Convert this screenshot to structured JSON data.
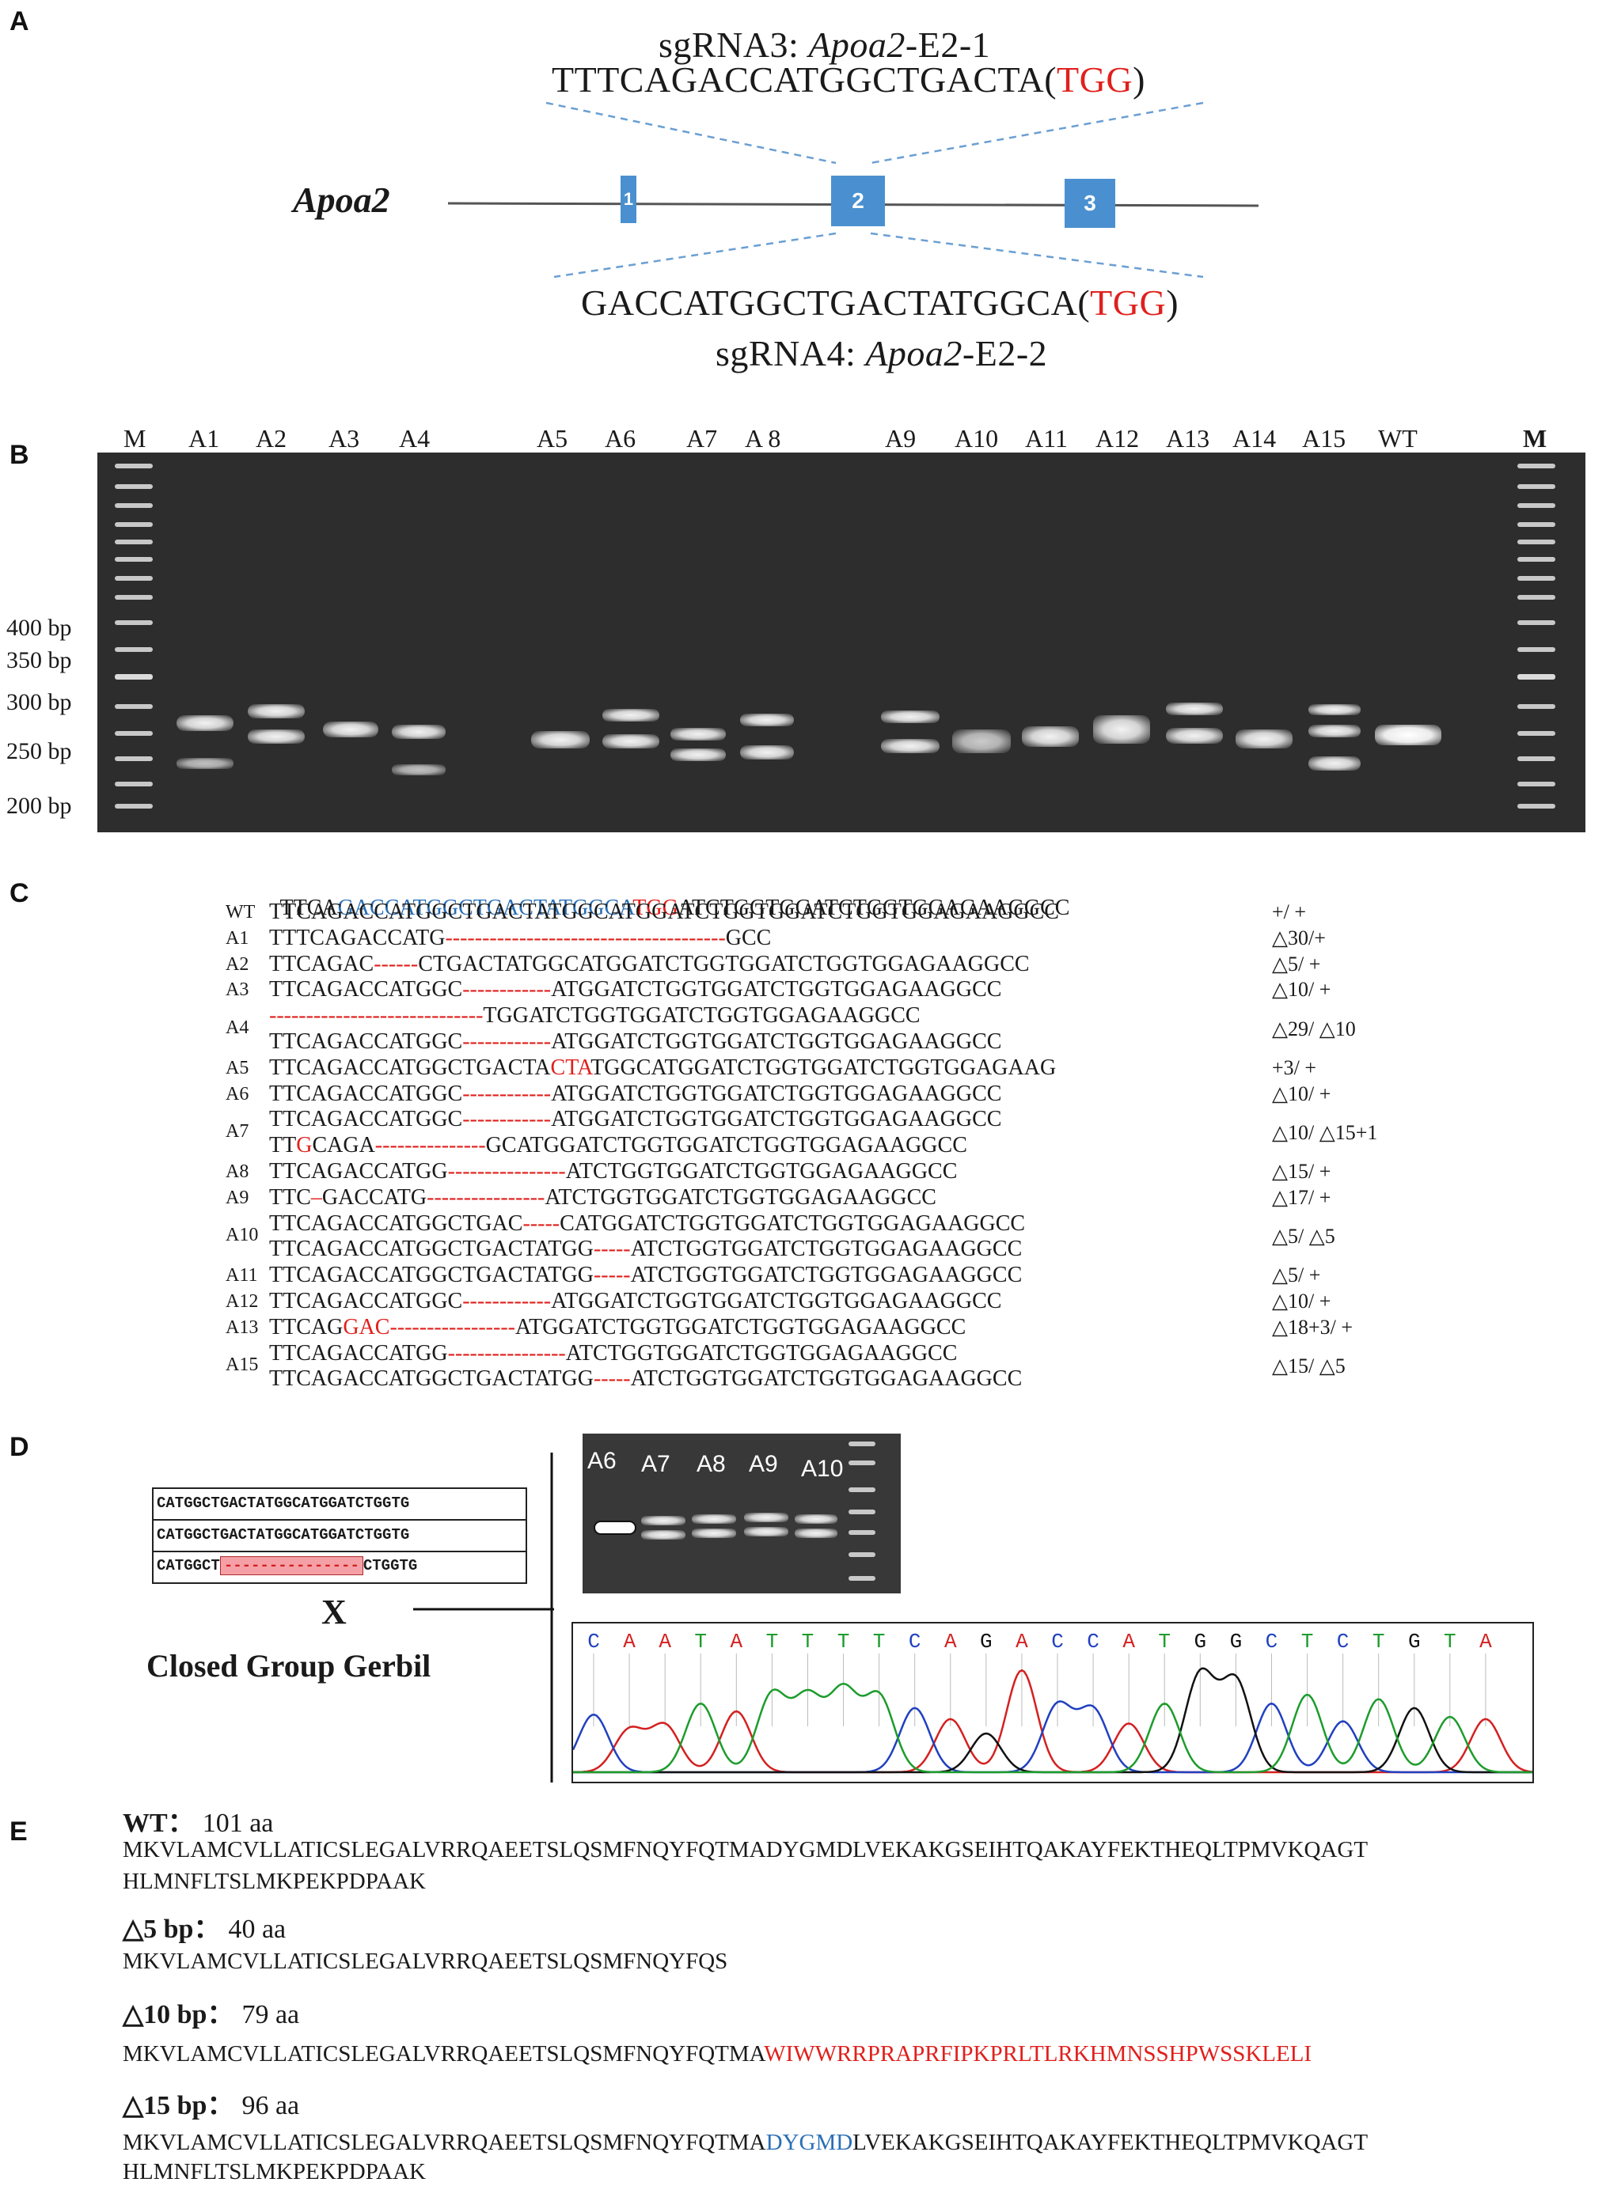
{
  "panels": [
    "A",
    "B",
    "C",
    "D",
    "E"
  ],
  "panelA": {
    "sg3_prefix": "sgRNA3: ",
    "sg3_gene": "Apoa2",
    "sg3_suffix": "-E2-1",
    "sg3_seq": "TTTCAGACCATGGCTGACTA",
    "sg3_pam_open": "(",
    "sg3_pam": "TGG",
    "sg3_pam_close": ")",
    "gene_name": "Apoa2",
    "exons": [
      "1",
      "2",
      "3"
    ],
    "sg4_seq": "GACCATGGCTGACTATGGCA",
    "sg4_pam_open": "(",
    "sg4_pam": "TGG",
    "sg4_pam_close": ")",
    "sg4_prefix": "sgRNA4: ",
    "sg4_gene": "Apoa2",
    "sg4_suffix": "-E2-2"
  },
  "panelB": {
    "lanes": [
      "M",
      "A1",
      "A2",
      "A3",
      "A4",
      "A5",
      "A6",
      "A7",
      "A 8",
      "A9",
      "A10",
      "A11",
      "A12",
      "A13",
      "A14",
      "A15",
      "WT",
      "M"
    ],
    "size_markers": [
      "400 bp",
      "350 bp",
      "300 bp",
      "250 bp",
      "200 bp"
    ]
  },
  "panelC": {
    "ref": {
      "p1": "TTCA",
      "p2": "GACCATGGCTGACTATGGCA",
      "p3": "TGG",
      "p4": "ATCTGGTGGATCTGGTGGAGAAGGCC"
    },
    "rows": [
      {
        "label": "WT",
        "seq": "TTCAGACCATGGCTGACTATGGCATGGATCTGGTGGATCTGGTGGAGAAGGCC",
        "note": "+/ +"
      },
      {
        "label": "A1",
        "seq": "TTTCAGACCATG",
        "dash": "--------------------------------------",
        "seq2": "GCC",
        "note": "△30/+"
      },
      {
        "label": "A2",
        "seq": "TTCAGAC",
        "dash": "------",
        "seq2": "CTGACTATGGCATGGATCTGGTGGATCTGGTGGAGAAGGCC",
        "note": "△5/ +"
      },
      {
        "label": "A3",
        "seq": "TTCAGACCATGGC",
        "dash": "------------",
        "seq2": "ATGGATCTGGTGGATCTGGTGGAGAAGGCC",
        "note": "△10/ +"
      },
      {
        "label": "A4",
        "seq": "",
        "dash": "-----------------------------",
        "seq2": "TGGATCTGGTGGATCTGGTGGAGAAGGCC",
        "note": ""
      },
      {
        "label": "",
        "seq": "TTCAGACCATGGC",
        "dash": "------------",
        "seq2": "ATGGATCTGGTGGATCTGGTGGAGAAGGCC",
        "note": "△29/ △10"
      },
      {
        "label": "A5",
        "seq": "TTCAGACCATGGCTGACTA",
        "ins": "CTA",
        "seq2": "TGGCATGGATCTGGTGGATCTGGTGGAGAAG",
        "note": "+3/ +"
      },
      {
        "label": "A6",
        "seq": "TTCAGACCATGGC",
        "dash": "------------",
        "seq2": "ATGGATCTGGTGGATCTGGTGGAGAAGGCC",
        "note": "△10/ +"
      },
      {
        "label": "A7",
        "seq": "TTCAGACCATGGC",
        "dash": "------------",
        "seq2": "ATGGATCTGGTGGATCTGGTGGAGAAGGCC",
        "note": ""
      },
      {
        "label": "",
        "seq": "TT",
        "ins": "G",
        "seq1b": "CAGA",
        "dash": "---------------",
        "seq2": "GCATGGATCTGGTGGATCTGGTGGAGAAGGCC",
        "note": "△10/ △15+1"
      },
      {
        "label": "A8",
        "seq": "TTCAGACCATGG",
        "dash": "----------------",
        "seq2": "ATCTGGTGGATCTGGTGGAGAAGGCC",
        "note": "△15/ +"
      },
      {
        "label": "A9",
        "seq": "TTC",
        "dash1": "–",
        "seq1b": "GACCATG",
        "dash": "----------------",
        "seq2": "ATCTGGTGGATCTGGTGGAGAAGGCC",
        "note": "△17/ +"
      },
      {
        "label": "A10",
        "seq": "TTCAGACCATGGCTGAC",
        "dash": "-----",
        "seq2": "CATGGATCTGGTGGATCTGGTGGAGAAGGCC",
        "note": ""
      },
      {
        "label": "",
        "seq": "TTCAGACCATGGCTGACTATGG",
        "dash": "-----",
        "seq2": "ATCTGGTGGATCTGGTGGAGAAGGCC",
        "note": "△5/ △5"
      },
      {
        "label": "A11",
        "seq": "TTCAGACCATGGCTGACTATGG",
        "dash": "-----",
        "seq2": "ATCTGGTGGATCTGGTGGAGAAGGCC",
        "note": "△5/ +"
      },
      {
        "label": "A12",
        "seq": "TTCAGACCATGGC",
        "dash": "------------",
        "seq2": "ATGGATCTGGTGGATCTGGTGGAGAAGGCC",
        "note": "△10/ +"
      },
      {
        "label": "A13",
        "seq": "TTCAG",
        "ins": "GAC",
        "dash": "-----------------",
        "seq2": "ATGGATCTGGTGGATCTGGTGGAGAAGGCC",
        "note": "△18+3/ +"
      },
      {
        "label": "A15",
        "seq": "TTCAGACCATGG",
        "dash": "----------------",
        "seq2": "ATCTGGTGGATCTGGTGGAGAAGGCC",
        "note": ""
      },
      {
        "label": "",
        "seq": "TTCAGACCATGGCTGACTATGG",
        "dash": "-----",
        "seq2": "ATCTGGTGGATCTGGTGGAGAAGGCC",
        "note": "△15/ △5"
      }
    ]
  },
  "panelD": {
    "box_line1": "CATGGCTGACTATGGCATGGATCTGGTG",
    "box_line2": "CATGGCTGACTATGGCATGGATCTGGTG",
    "box_line3_left": "CATGGCT",
    "box_line3_dash": "---------------",
    "box_line3_right": "CTGGTG",
    "cross": "X",
    "closed_group": "Closed Group Gerbil",
    "gel_lanes": [
      "A6",
      "A7",
      "A8",
      "A9",
      "A10"
    ],
    "chromatogram_bases": [
      "C",
      "A",
      "A",
      "T",
      "A",
      "T",
      "T",
      "T",
      "T",
      "C",
      "A",
      "G",
      "A",
      "C",
      "C",
      "A",
      "T",
      "G",
      "G",
      "C",
      "T",
      "C",
      "T",
      "G",
      "T",
      "A"
    ],
    "base_colors": {
      "A": "#d42020",
      "C": "#2040c0",
      "G": "#111111",
      "T": "#1c9c2c"
    }
  },
  "panelE": {
    "wt_label": "WT",
    "wt_colon": "：",
    "wt_len": "101 aa",
    "wt_seq1": "MKVLAMCVLLATICSLEGALVRRQAEETSLQSMFNQYFQTMADYGMDLVEKAKGSEIHTQAKAYFEKTHEQLTPMVKQAGT",
    "wt_seq2": "HLMNFLTSLMKPEKPDPAAK",
    "d5_label": "△5 bp",
    "d5_colon": "：",
    "d5_len": "40 aa",
    "d5_seq": "MKVLAMCVLLATICSLEGALVRRQAEETSLQSMFNQYFQS",
    "d10_label": "△10 bp",
    "d10_colon": "：",
    "d10_len": "79 aa",
    "d10_seq_black": "MKVLAMCVLLATICSLEGALVRRQAEETSLQSMFNQYFQTMA",
    "d10_seq_red": "WIWWRRPRAPRFIPKPRLTLRKHMNSSHPWSSKLELI",
    "d15_label": "△15 bp",
    "d15_colon": "：",
    "d15_len": "96 aa",
    "d15_seq_black1": "MKVLAMCVLLATICSLEGALVRRQAEETSLQSMFNQYFQTMA",
    "d15_seq_blue": "DYGMD",
    "d15_seq_black2": "LVEKAKGSEIHTQAKAYFEKTHEQLTPMVKQAGT",
    "d15_seq2": "HLMNFLTSLMKPEKPDPAAK"
  }
}
